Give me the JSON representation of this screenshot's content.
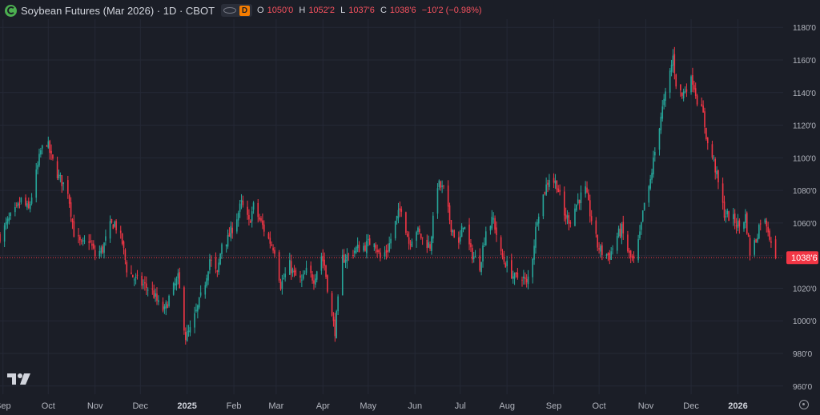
{
  "header": {
    "symbol_title": "Soybean Futures (Mar 2026) · 1D · CBOT",
    "interval_badge": "D",
    "open_label": "O",
    "open_value": "1050'0",
    "high_label": "H",
    "high_value": "1052'2",
    "low_label": "L",
    "low_value": "1037'6",
    "close_label": "C",
    "close_value": "1038'6",
    "change": "−10'2 (−0.98%)"
  },
  "colors": {
    "background": "#1b1e27",
    "up": "#26a69a",
    "down": "#f23645",
    "grid": "#252936",
    "axis_text": "#b2b5be",
    "price_line": "#f23645"
  },
  "icons": [
    "soybean-logo-icon",
    "eye-icon",
    "tradingview-logo-icon",
    "settings-icon"
  ],
  "chart_data": {
    "type": "candlestick",
    "title": "Soybean Futures (Mar 2026) · 1D · CBOT",
    "y_range": [
      955,
      1185
    ],
    "y_ticks": [
      960,
      980,
      1000,
      1020,
      1040,
      1060,
      1080,
      1100,
      1120,
      1140,
      1160,
      1180
    ],
    "y_tick_labels": [
      "960'0",
      "980'0",
      "1000'0",
      "1020'0",
      "1040'0",
      "1060'0",
      "1080'0",
      "1100'0",
      "1120'0",
      "1140'0",
      "1160'0",
      "1180'0"
    ],
    "x_ticks": [
      {
        "label": "Sep",
        "date": "2024-09-01"
      },
      {
        "label": "Oct",
        "date": "2024-10-01"
      },
      {
        "label": "Nov",
        "date": "2024-11-01"
      },
      {
        "label": "Dec",
        "date": "2024-12-01"
      },
      {
        "label": "2025",
        "date": "2025-01-01",
        "bold": true
      },
      {
        "label": "Feb",
        "date": "2025-02-01"
      },
      {
        "label": "Mar",
        "date": "2025-03-01"
      },
      {
        "label": "Apr",
        "date": "2025-04-01"
      },
      {
        "label": "May",
        "date": "2025-05-01"
      },
      {
        "label": "Jun",
        "date": "2025-06-01"
      },
      {
        "label": "Jul",
        "date": "2025-07-01"
      },
      {
        "label": "Aug",
        "date": "2025-08-01"
      },
      {
        "label": "Sep",
        "date": "2025-09-01"
      },
      {
        "label": "Oct",
        "date": "2025-10-01"
      },
      {
        "label": "Nov",
        "date": "2025-11-01"
      },
      {
        "label": "Dec",
        "date": "2025-12-01"
      },
      {
        "label": "2026",
        "date": "2026-01-01",
        "bold": true
      }
    ],
    "last_price": 1038.75,
    "last_price_label": "1038'6",
    "grid": true,
    "close_path": [
      [
        "2024-08-30",
        1052
      ],
      [
        "2024-09-05",
        1062
      ],
      [
        "2024-09-10",
        1068
      ],
      [
        "2024-09-13",
        1074
      ],
      [
        "2024-09-18",
        1068
      ],
      [
        "2024-09-23",
        1090
      ],
      [
        "2024-09-26",
        1104
      ],
      [
        "2024-09-30",
        1110
      ],
      [
        "2024-10-03",
        1100
      ],
      [
        "2024-10-08",
        1088
      ],
      [
        "2024-10-14",
        1080
      ],
      [
        "2024-10-18",
        1054
      ],
      [
        "2024-10-23",
        1046
      ],
      [
        "2024-10-28",
        1050
      ],
      [
        "2024-11-01",
        1040
      ],
      [
        "2024-11-06",
        1044
      ],
      [
        "2024-11-11",
        1058
      ],
      [
        "2024-11-14",
        1060
      ],
      [
        "2024-11-19",
        1048
      ],
      [
        "2024-11-22",
        1032
      ],
      [
        "2024-11-27",
        1026
      ],
      [
        "2024-12-03",
        1022
      ],
      [
        "2024-12-09",
        1018
      ],
      [
        "2024-12-13",
        1010
      ],
      [
        "2024-12-17",
        1006
      ],
      [
        "2024-12-20",
        1014
      ],
      [
        "2024-12-26",
        1026
      ],
      [
        "2024-12-31",
        990
      ],
      [
        "2025-01-03",
        994
      ],
      [
        "2025-01-08",
        1008
      ],
      [
        "2025-01-13",
        1024
      ],
      [
        "2025-01-16",
        1038
      ],
      [
        "2025-01-21",
        1028
      ],
      [
        "2025-01-24",
        1048
      ],
      [
        "2025-01-28",
        1050
      ],
      [
        "2025-02-03",
        1064
      ],
      [
        "2025-02-06",
        1072
      ],
      [
        "2025-02-11",
        1060
      ],
      [
        "2025-02-14",
        1070
      ],
      [
        "2025-02-19",
        1060
      ],
      [
        "2025-02-24",
        1050
      ],
      [
        "2025-02-28",
        1044
      ],
      [
        "2025-03-04",
        1022
      ],
      [
        "2025-03-10",
        1034
      ],
      [
        "2025-03-13",
        1028
      ],
      [
        "2025-03-18",
        1024
      ],
      [
        "2025-03-21",
        1030
      ],
      [
        "2025-03-26",
        1026
      ],
      [
        "2025-03-31",
        1040
      ],
      [
        "2025-04-02",
        1034
      ],
      [
        "2025-04-07",
        1002
      ],
      [
        "2025-04-09",
        994
      ],
      [
        "2025-04-14",
        1038
      ],
      [
        "2025-04-18",
        1040
      ],
      [
        "2025-04-23",
        1044
      ],
      [
        "2025-04-29",
        1046
      ],
      [
        "2025-05-05",
        1050
      ],
      [
        "2025-05-09",
        1038
      ],
      [
        "2025-05-14",
        1044
      ],
      [
        "2025-05-19",
        1060
      ],
      [
        "2025-05-23",
        1070
      ],
      [
        "2025-05-28",
        1048
      ],
      [
        "2025-06-02",
        1056
      ],
      [
        "2025-06-06",
        1050
      ],
      [
        "2025-06-11",
        1046
      ],
      [
        "2025-06-16",
        1084
      ],
      [
        "2025-06-20",
        1080
      ],
      [
        "2025-06-25",
        1058
      ],
      [
        "2025-06-30",
        1046
      ],
      [
        "2025-07-03",
        1060
      ],
      [
        "2025-07-08",
        1042
      ],
      [
        "2025-07-14",
        1034
      ],
      [
        "2025-07-18",
        1056
      ],
      [
        "2025-07-23",
        1062
      ],
      [
        "2025-07-28",
        1040
      ],
      [
        "2025-08-01",
        1034
      ],
      [
        "2025-08-06",
        1026
      ],
      [
        "2025-08-11",
        1028
      ],
      [
        "2025-08-14",
        1022
      ],
      [
        "2025-08-18",
        1040
      ],
      [
        "2025-08-21",
        1064
      ],
      [
        "2025-08-26",
        1080
      ],
      [
        "2025-08-29",
        1088
      ],
      [
        "2025-09-03",
        1084
      ],
      [
        "2025-09-08",
        1064
      ],
      [
        "2025-09-12",
        1062
      ],
      [
        "2025-09-17",
        1074
      ],
      [
        "2025-09-22",
        1080
      ],
      [
        "2025-09-25",
        1066
      ],
      [
        "2025-09-30",
        1046
      ],
      [
        "2025-10-03",
        1042
      ],
      [
        "2025-10-08",
        1040
      ],
      [
        "2025-10-13",
        1052
      ],
      [
        "2025-10-16",
        1056
      ],
      [
        "2025-10-21",
        1040
      ],
      [
        "2025-10-24",
        1036
      ],
      [
        "2025-10-28",
        1052
      ],
      [
        "2025-10-31",
        1072
      ],
      [
        "2025-11-03",
        1080
      ],
      [
        "2025-11-06",
        1098
      ],
      [
        "2025-11-11",
        1126
      ],
      [
        "2025-11-14",
        1138
      ],
      [
        "2025-11-17",
        1152
      ],
      [
        "2025-11-19",
        1162
      ],
      [
        "2025-11-21",
        1146
      ],
      [
        "2025-11-25",
        1138
      ],
      [
        "2025-11-28",
        1144
      ],
      [
        "2025-12-02",
        1148
      ],
      [
        "2025-12-05",
        1136
      ],
      [
        "2025-12-09",
        1126
      ],
      [
        "2025-12-12",
        1108
      ],
      [
        "2025-12-16",
        1098
      ],
      [
        "2025-12-19",
        1084
      ],
      [
        "2025-12-23",
        1066
      ],
      [
        "2025-12-29",
        1062
      ],
      [
        "2026-01-02",
        1058
      ],
      [
        "2026-01-06",
        1064
      ],
      [
        "2026-01-09",
        1042
      ],
      [
        "2026-01-13",
        1050
      ],
      [
        "2026-01-16",
        1062
      ],
      [
        "2026-01-20",
        1060
      ],
      [
        "2026-01-23",
        1049
      ],
      [
        "2026-01-26",
        1038.75
      ]
    ]
  }
}
